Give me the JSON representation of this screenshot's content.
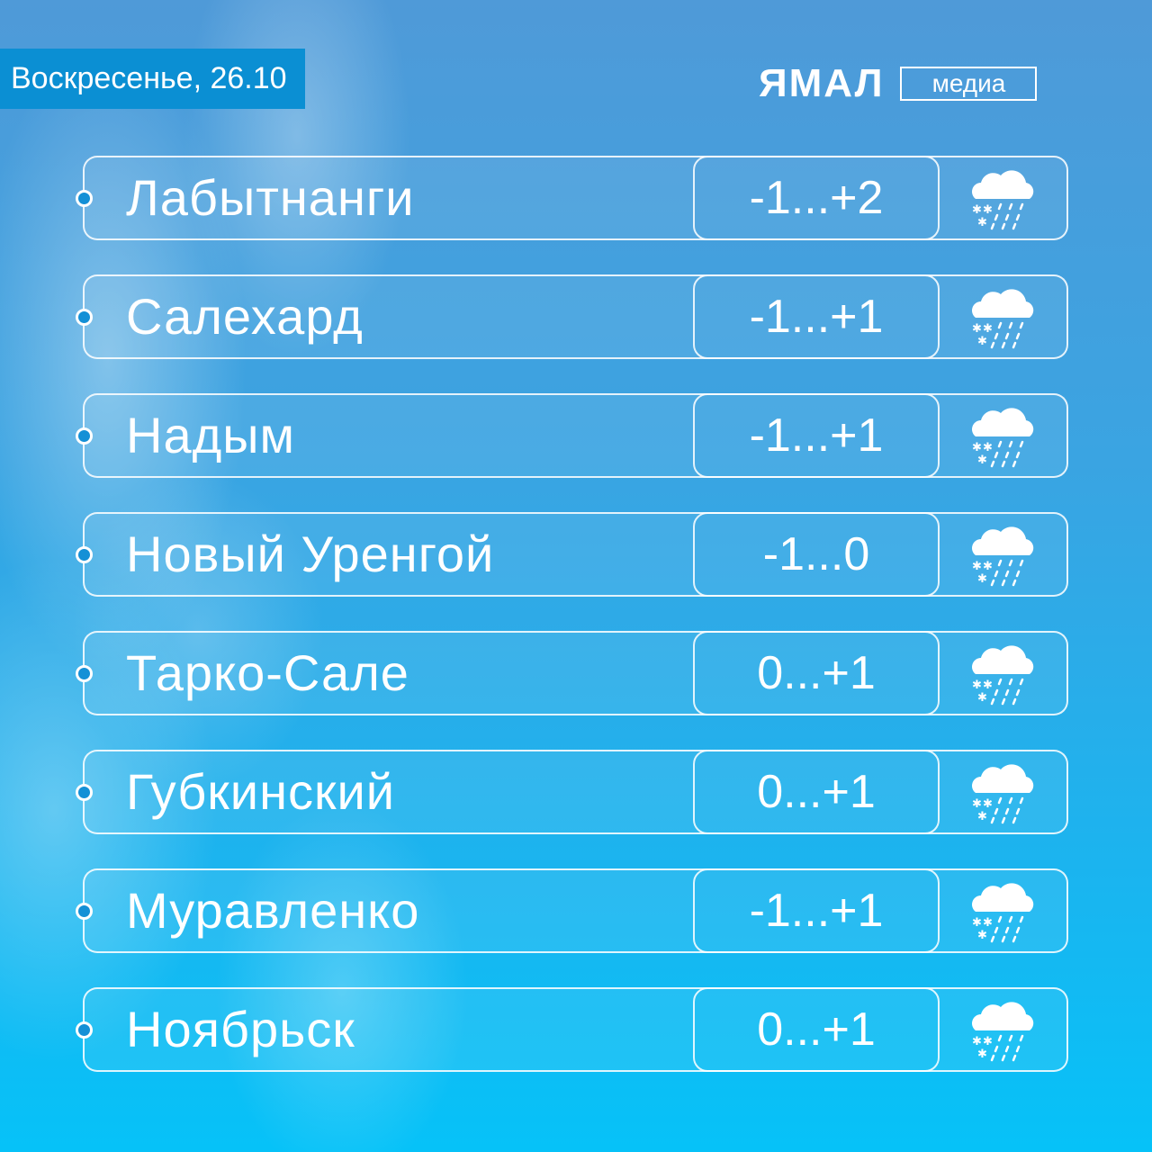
{
  "header": {
    "date": "Воскресенье, 26.10"
  },
  "logo": {
    "main": "ЯМАЛ",
    "sub": "медиа"
  },
  "forecast": [
    {
      "city": "Лабытнанги",
      "temp": "-1...+2",
      "icon": "cloud-rain-snow-icon"
    },
    {
      "city": "Салехард",
      "temp": "-1...+1",
      "icon": "cloud-rain-snow-icon"
    },
    {
      "city": "Надым",
      "temp": "-1...+1",
      "icon": "cloud-rain-snow-icon"
    },
    {
      "city": "Новый Уренгой",
      "temp": "-1...0",
      "icon": "cloud-rain-snow-icon"
    },
    {
      "city": "Тарко-Сале",
      "temp": "0...+1",
      "icon": "cloud-rain-snow-icon"
    },
    {
      "city": "Губкинский",
      "temp": "0...+1",
      "icon": "cloud-rain-snow-icon"
    },
    {
      "city": "Муравленко",
      "temp": "-1...+1",
      "icon": "cloud-rain-snow-icon"
    },
    {
      "city": "Ноябрьск",
      "temp": "0...+1",
      "icon": "cloud-rain-snow-icon"
    }
  ],
  "colors": {
    "date_badge": "#0b8fd3",
    "bullet": "#1490d6"
  }
}
